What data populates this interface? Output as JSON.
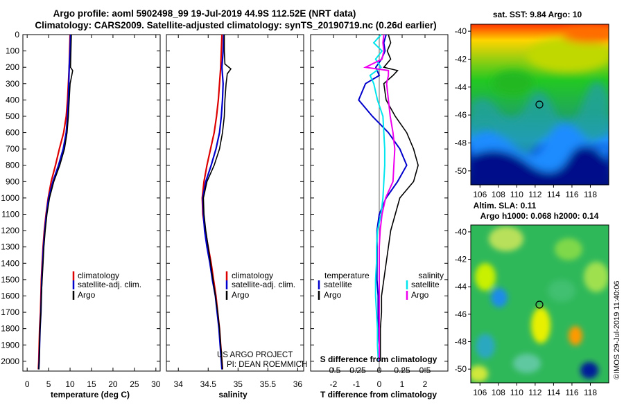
{
  "title_line1": "Argo profile: aoml 5902498_99 19-Jul-2019 44.9S 112.52E (NRT data)",
  "title_line2": "Climatology: CARS2009. Satellite-adjusted climatology: synTS_20190719.nc (0.26d earlier)",
  "depth_ticks": [
    "0",
    "100",
    "200",
    "300",
    "400",
    "500",
    "600",
    "700",
    "800",
    "900",
    "1000",
    "1100",
    "1200",
    "1300",
    "1400",
    "1500",
    "1600",
    "1700",
    "1800",
    "1900",
    "2000"
  ],
  "credit": "US ARGO PROJECT\nPI: DEAN ROEMMICH",
  "credit_line1": "US ARGO PROJECT",
  "credit_line2": "PI: DEAN ROEMMICH",
  "watermark": "©IMOS 29-Jul-2019 11:40:06",
  "colors": {
    "climatology": "#dd0000",
    "satellite": "#0000cc",
    "argo": "#000000",
    "sal_satellite": "#00e5ee",
    "sal_argo": "#ee00ee"
  },
  "chart_data": [
    {
      "type": "line",
      "xlabel": "temperature (deg C)",
      "ylabel": "",
      "xlim": [
        -1,
        31
      ],
      "ylim": [
        2060,
        0
      ],
      "xticks": [
        "0",
        "5",
        "10",
        "15",
        "20",
        "25",
        "30"
      ],
      "legend": [
        "climatology",
        "satellite-adj. clim.",
        "Argo"
      ],
      "series": [
        {
          "name": "climatology",
          "depth": [
            0,
            100,
            200,
            300,
            400,
            500,
            600,
            700,
            800,
            900,
            1000,
            1100,
            1200,
            1300,
            1400,
            1500,
            1600,
            1700,
            1800,
            1900,
            2000,
            2050
          ],
          "values": [
            10.0,
            9.9,
            9.8,
            9.6,
            9.4,
            9.1,
            8.5,
            7.5,
            6.6,
            5.6,
            4.9,
            4.4,
            4.0,
            3.7,
            3.5,
            3.3,
            3.2,
            3.1,
            2.9,
            2.8,
            2.7,
            2.6
          ]
        },
        {
          "name": "satellite-adj. clim.",
          "depth": [
            0,
            100,
            200,
            300,
            400,
            500,
            600,
            700,
            800,
            900,
            1000,
            1100,
            1200,
            1300,
            1400,
            1500,
            1600,
            1700,
            1800,
            1900,
            2000,
            2050
          ],
          "values": [
            10.1,
            10.0,
            9.8,
            9.7,
            9.6,
            9.4,
            9.1,
            8.4,
            7.3,
            6.0,
            5.0,
            4.5,
            4.1,
            3.8,
            3.6,
            3.4,
            3.3,
            3.2,
            3.0,
            2.9,
            2.8,
            2.7
          ]
        },
        {
          "name": "Argo",
          "depth": [
            0,
            100,
            200,
            220,
            250,
            300,
            400,
            500,
            600,
            700,
            800,
            900,
            1000,
            1100,
            1200,
            1300,
            1400,
            1500,
            1600,
            1700,
            1800,
            1900,
            2000,
            2050
          ],
          "values": [
            10.3,
            10.2,
            10.1,
            10.6,
            10.4,
            10.0,
            9.8,
            9.6,
            9.3,
            8.7,
            7.6,
            6.2,
            5.2,
            4.6,
            4.2,
            3.9,
            3.7,
            3.5,
            3.3,
            3.2,
            3.0,
            2.9,
            2.8,
            2.7
          ]
        }
      ]
    },
    {
      "type": "line",
      "xlabel": "salinity",
      "ylabel": "",
      "xlim": [
        33.8,
        36.1
      ],
      "ylim": [
        2060,
        0
      ],
      "xticks": [
        "34",
        "34.5",
        "35",
        "35.5",
        "36"
      ],
      "legend": [
        "climatology",
        "satellite-adj. clim.",
        "Argo"
      ],
      "series": [
        {
          "name": "climatology",
          "depth": [
            0,
            100,
            200,
            300,
            400,
            500,
            600,
            700,
            800,
            900,
            1000,
            1100,
            1200,
            1300,
            1400,
            1500,
            1600,
            1700,
            1800,
            1900,
            2000,
            2050
          ],
          "values": [
            34.73,
            34.72,
            34.71,
            34.69,
            34.67,
            34.64,
            34.6,
            34.54,
            34.48,
            34.43,
            34.4,
            34.41,
            34.45,
            34.5,
            34.55,
            34.59,
            34.63,
            34.66,
            34.69,
            34.71,
            34.73,
            34.74
          ]
        },
        {
          "name": "satellite-adj. clim.",
          "depth": [
            0,
            100,
            200,
            300,
            400,
            500,
            600,
            700,
            800,
            900,
            1000,
            1100,
            1200,
            1300,
            1400,
            1500,
            1600,
            1700,
            1800,
            1900,
            2000,
            2050
          ],
          "values": [
            34.76,
            34.75,
            34.73,
            34.75,
            34.74,
            34.72,
            34.69,
            34.63,
            34.55,
            34.46,
            34.41,
            34.42,
            34.44,
            34.48,
            34.53,
            34.57,
            34.62,
            34.65,
            34.68,
            34.7,
            34.72,
            34.73
          ]
        },
        {
          "name": "Argo",
          "depth": [
            0,
            100,
            180,
            210,
            240,
            300,
            400,
            500,
            600,
            700,
            800,
            900,
            1000,
            1100,
            1200,
            1300,
            1400,
            1500,
            1600,
            1700,
            1800,
            1900,
            2000,
            2050
          ],
          "values": [
            34.77,
            34.77,
            34.78,
            34.88,
            34.82,
            34.8,
            34.78,
            34.77,
            34.74,
            34.69,
            34.6,
            34.48,
            34.42,
            34.43,
            34.46,
            34.5,
            34.54,
            34.58,
            34.62,
            34.66,
            34.69,
            34.71,
            34.73,
            34.74
          ]
        }
      ]
    },
    {
      "type": "line",
      "xlabel": "T difference from climatology",
      "ylabel": "",
      "xlim": [
        -3,
        3
      ],
      "ylim": [
        2060,
        0
      ],
      "xticks": [
        "-2",
        "-1",
        "0",
        "1",
        "2"
      ],
      "top_label": "S difference from climatology",
      "top_ticks": [
        "-0.5",
        "-0.25",
        "0",
        "0.25",
        "0.5"
      ],
      "legend_left_title": "temperature",
      "legend_right_title": "salinity",
      "legend": [
        "satellite",
        "Argo",
        "satellite",
        "Argo"
      ],
      "series": [
        {
          "name": "satellite",
          "depth": [
            0,
            50,
            100,
            150,
            200,
            250,
            300,
            400,
            500,
            600,
            700,
            800,
            900,
            1000,
            1100,
            1200,
            1300,
            1400,
            1500,
            1600,
            1700,
            1800,
            1900,
            2000
          ],
          "values": [
            0.3,
            0.2,
            0.25,
            0.1,
            -0.15,
            0.0,
            -0.6,
            -0.9,
            -0.3,
            0.4,
            0.9,
            1.2,
            0.8,
            0.3,
            0.0,
            -0.1,
            -0.1,
            -0.1,
            -0.1,
            -0.05,
            -0.05,
            -0.05,
            0.0,
            0.0
          ]
        },
        {
          "name": "Argo",
          "depth": [
            0,
            50,
            100,
            150,
            200,
            220,
            250,
            300,
            400,
            500,
            600,
            700,
            800,
            900,
            1000,
            1100,
            1200,
            1300,
            1400,
            1500,
            1600,
            1700,
            1800,
            1900,
            2000
          ],
          "values": [
            0.4,
            0.5,
            0.35,
            0.5,
            0.2,
            0.8,
            0.6,
            0.2,
            0.3,
            0.7,
            1.2,
            1.5,
            1.7,
            1.5,
            0.9,
            0.7,
            0.5,
            0.4,
            0.3,
            0.2,
            0.1,
            0.1,
            0.05,
            0.05,
            0.05
          ]
        },
        {
          "name": "satellite",
          "depth": [
            0,
            50,
            100,
            150,
            200,
            250,
            300,
            400,
            500,
            600,
            700,
            800,
            900,
            1000,
            1100,
            1200,
            1300,
            1400,
            1500,
            1600,
            1700,
            1800,
            1900,
            2000
          ],
          "values": [
            0.02,
            -0.06,
            0.03,
            -0.04,
            0.02,
            -0.1,
            -0.06,
            -0.02,
            0.04,
            0.05,
            0.06,
            0.06,
            0.05,
            0.04,
            0.02,
            -0.02,
            -0.03,
            -0.03,
            -0.04,
            -0.04,
            -0.03,
            -0.02,
            -0.02,
            -0.01
          ]
        },
        {
          "name": "Argo",
          "depth": [
            0,
            50,
            100,
            150,
            200,
            220,
            250,
            300,
            400,
            500,
            600,
            700,
            800,
            900,
            1000,
            1100,
            1200,
            1300,
            1400,
            1500,
            1600,
            1700,
            1800,
            1900,
            2000
          ],
          "values": [
            0.05,
            0.04,
            0.05,
            0.03,
            -0.15,
            0.1,
            0.1,
            0.08,
            0.1,
            0.12,
            0.15,
            0.17,
            0.16,
            0.15,
            0.07,
            0.03,
            0.01,
            0.0,
            0.0,
            0.0,
            0.0,
            0.0,
            0.0,
            0.0,
            0.0
          ]
        }
      ]
    },
    {
      "type": "heatmap",
      "title": "sat. SST: 9.84 Argo: 10",
      "xticks": [
        "106",
        "108",
        "110",
        "112",
        "114",
        "116",
        "118"
      ],
      "yticks": [
        "-40",
        "-42",
        "-44",
        "-46",
        "-48",
        "-50"
      ],
      "xlim": [
        105,
        120
      ],
      "ylim": [
        -51,
        -39.5
      ],
      "marker": {
        "lon": 112.52,
        "lat": -44.9
      }
    },
    {
      "type": "heatmap",
      "title": "Altim. SLA: 0.11",
      "subtitle": "Argo h1000: 0.068 h2000: 0.14",
      "xticks": [
        "106",
        "108",
        "110",
        "112",
        "114",
        "116",
        "118"
      ],
      "yticks": [
        "-40",
        "-42",
        "-44",
        "-46",
        "-48",
        "-50"
      ],
      "xlim": [
        105,
        120
      ],
      "ylim": [
        -51,
        -39.5
      ],
      "marker": {
        "lon": 112.52,
        "lat": -44.9
      }
    }
  ]
}
